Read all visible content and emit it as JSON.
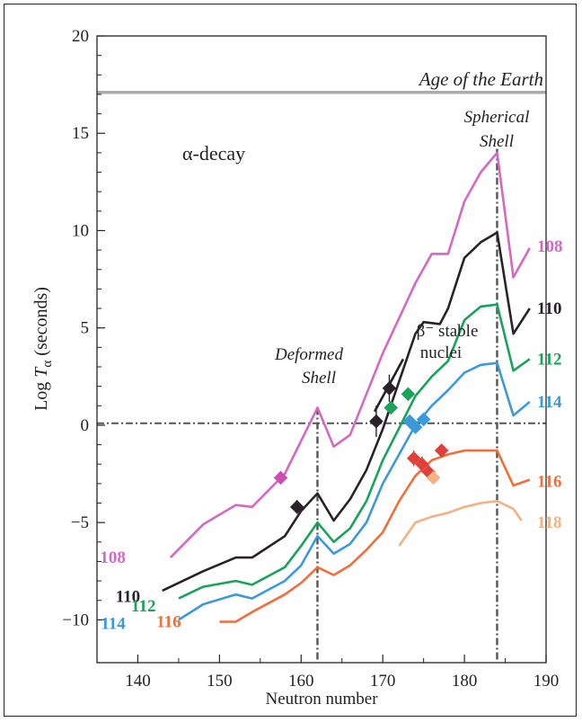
{
  "chart_data": {
    "type": "line",
    "xlabel": "Neutron number",
    "ylabel_prefix": "Log ",
    "ylabel_T": "T",
    "ylabel_sub": "α",
    "ylabel_suffix": " (seconds)",
    "xlim": [
      135,
      190
    ],
    "ylim": [
      -12.2,
      20
    ],
    "x_ticks": [
      140,
      150,
      160,
      170,
      180,
      190
    ],
    "y_ticks": [
      -10,
      -5,
      0,
      5,
      10,
      15,
      20
    ],
    "grid": false,
    "earth_age_line": {
      "y": 17.1,
      "label": "Age of the Earth",
      "color": "#aaaaaa"
    },
    "deformed_shell": {
      "x": 162,
      "label_line1": "Deformed",
      "label_line2": "Shell"
    },
    "spherical_shell": {
      "x": 184,
      "label_line1": "Spherical",
      "label_line2": "Shell"
    },
    "zero_line_y": 0.1,
    "alpha_decay_label": "α-decay",
    "beta_label_line1": "β⁻ stable",
    "beta_label_line2": "nuclei",
    "beta_line": {
      "x": [
        169,
        172.5
      ],
      "y": [
        0.7,
        3.4
      ],
      "color": "#222222"
    },
    "series": [
      {
        "name": "108",
        "color": "#d468c3",
        "x": [
          144,
          148,
          152,
          154,
          158,
          162,
          164,
          166,
          170,
          174,
          176,
          178,
          180,
          182,
          184,
          186,
          188
        ],
        "y": [
          -6.8,
          -5.1,
          -4.1,
          -4.2,
          -2.5,
          0.9,
          -1.1,
          -0.5,
          3.7,
          7.3,
          8.8,
          8.8,
          11.5,
          13.0,
          14.0,
          7.6,
          9.1
        ],
        "start_label": {
          "text": "108",
          "x": 138.5,
          "y": -6.8
        },
        "end_label": {
          "text": "108",
          "y": 9.2
        }
      },
      {
        "name": "110",
        "color": "#2a2228",
        "x": [
          143,
          148,
          152,
          154,
          158,
          160,
          162,
          164,
          166,
          168,
          170,
          174,
          175,
          177,
          178,
          180,
          182,
          184,
          186,
          188
        ],
        "y": [
          -8.5,
          -7.5,
          -6.8,
          -6.8,
          -5.7,
          -4.4,
          -3.5,
          -4.9,
          -3.8,
          -2.3,
          -0.2,
          4.7,
          5.3,
          5.2,
          6.0,
          8.6,
          9.4,
          9.9,
          4.7,
          6.0
        ],
        "start_label": {
          "text": "110",
          "x": 140.3,
          "y": -8.8
        },
        "end_label": {
          "text": "110",
          "y": 6.0
        }
      },
      {
        "name": "112",
        "color": "#19a35a",
        "x": [
          145,
          148,
          152,
          154,
          158,
          160,
          162,
          164,
          166,
          168,
          170,
          174,
          176,
          178,
          180,
          182,
          184,
          186,
          188
        ],
        "y": [
          -8.9,
          -8.3,
          -8.0,
          -8.2,
          -7.3,
          -6.2,
          -5.0,
          -6.0,
          -5.3,
          -3.9,
          -1.8,
          1.5,
          2.5,
          3.3,
          5.4,
          6.1,
          6.2,
          2.8,
          3.4
        ],
        "start_label": {
          "text": "112",
          "x": 142.2,
          "y": -9.3
        },
        "end_label": {
          "text": "112",
          "y": 3.4
        }
      },
      {
        "name": "114",
        "color": "#3a9ad9",
        "x": [
          145,
          148,
          152,
          154,
          158,
          160,
          162,
          164,
          166,
          168,
          170,
          174,
          176,
          178,
          180,
          182,
          184,
          186,
          188
        ],
        "y": [
          -10.0,
          -9.2,
          -8.7,
          -8.9,
          -8.0,
          -7.2,
          -5.7,
          -6.6,
          -6.1,
          -5.0,
          -3.0,
          0.0,
          1.0,
          1.8,
          2.7,
          3.1,
          3.2,
          0.5,
          1.2
        ],
        "start_label": {
          "text": "114",
          "x": 138.5,
          "y": -10.2
        },
        "end_label": {
          "text": "114",
          "y": 1.2
        }
      },
      {
        "name": "116",
        "color": "#f06e3a",
        "x": [
          150,
          152,
          154,
          158,
          160,
          162,
          164,
          166,
          168,
          170,
          172,
          174,
          176,
          178,
          180,
          182,
          184,
          186,
          188
        ],
        "y": [
          -10.1,
          -10.1,
          -9.6,
          -8.7,
          -8.1,
          -7.3,
          -7.7,
          -7.2,
          -6.4,
          -5.5,
          -3.9,
          -2.6,
          -1.8,
          -1.5,
          -1.3,
          -1.3,
          -1.3,
          -3.1,
          -2.8
        ],
        "start_label": {
          "text": "116",
          "x": 145.3,
          "y": -10.1
        },
        "end_label": {
          "text": "116",
          "y": -2.9
        }
      },
      {
        "name": "118",
        "color": "#f4b183",
        "x": [
          172,
          174,
          176,
          178,
          180,
          182,
          184,
          186,
          187
        ],
        "y": [
          -6.2,
          -5.0,
          -4.7,
          -4.5,
          -4.2,
          -4.0,
          -3.9,
          -4.3,
          -4.9
        ],
        "end_label": {
          "text": "118",
          "y": -5.0
        }
      }
    ],
    "data_points": [
      {
        "x": 157.5,
        "y": -2.7,
        "color": "#c94fb2",
        "err": 0.25
      },
      {
        "x": 159.5,
        "y": -4.2,
        "color": "#2a2228",
        "err": 0.35
      },
      {
        "x": 169.2,
        "y": 0.2,
        "color": "#2a2228",
        "err": 0.8
      },
      {
        "x": 170.8,
        "y": 1.9,
        "color": "#2a2228",
        "err": 0.7
      },
      {
        "x": 171.0,
        "y": 0.9,
        "color": "#19a35a",
        "err": 0.3
      },
      {
        "x": 173.1,
        "y": 1.6,
        "color": "#19a35a",
        "err": 0.3
      },
      {
        "x": 173.3,
        "y": 0.2,
        "color": "#3a9ad9",
        "err": 0.3
      },
      {
        "x": 174.0,
        "y": -0.1,
        "color": "#3a9ad9",
        "err": 0.3
      },
      {
        "x": 175.0,
        "y": 0.3,
        "color": "#3a9ad9",
        "err": 0.3
      },
      {
        "x": 173.8,
        "y": -1.7,
        "color": "#e0403a",
        "err": 0.4
      },
      {
        "x": 174.8,
        "y": -2.0,
        "color": "#e0403a",
        "err": 0.4
      },
      {
        "x": 175.6,
        "y": -2.4,
        "color": "#e0403a",
        "err": 0.4
      },
      {
        "x": 177.2,
        "y": -1.3,
        "color": "#e0403a",
        "err": 0.3
      },
      {
        "x": 176.2,
        "y": -2.7,
        "color": "#f4b183",
        "err": 0.3
      }
    ]
  }
}
